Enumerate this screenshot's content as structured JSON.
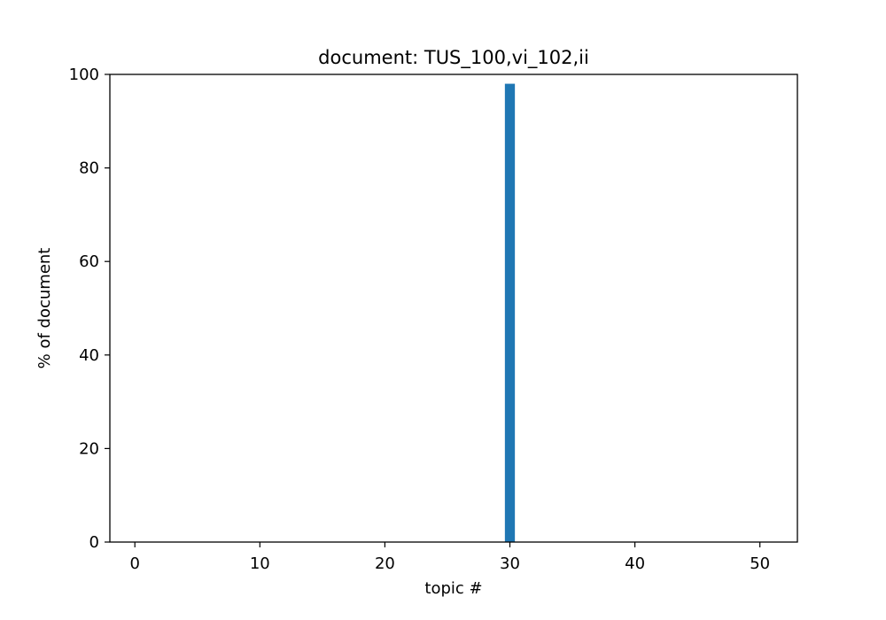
{
  "chart_data": {
    "type": "bar",
    "title": "document: TUS_100,vi_102,ii",
    "xlabel": "topic #",
    "ylabel": "% of document",
    "xlim": [
      -2,
      53
    ],
    "ylim": [
      0,
      100
    ],
    "xticks": [
      0,
      10,
      20,
      30,
      40,
      50
    ],
    "yticks": [
      0,
      20,
      40,
      60,
      80,
      100
    ],
    "grid": false,
    "bar_color": "#1f77b4",
    "bar_width": 0.8,
    "x": [
      30
    ],
    "values": [
      98
    ]
  }
}
